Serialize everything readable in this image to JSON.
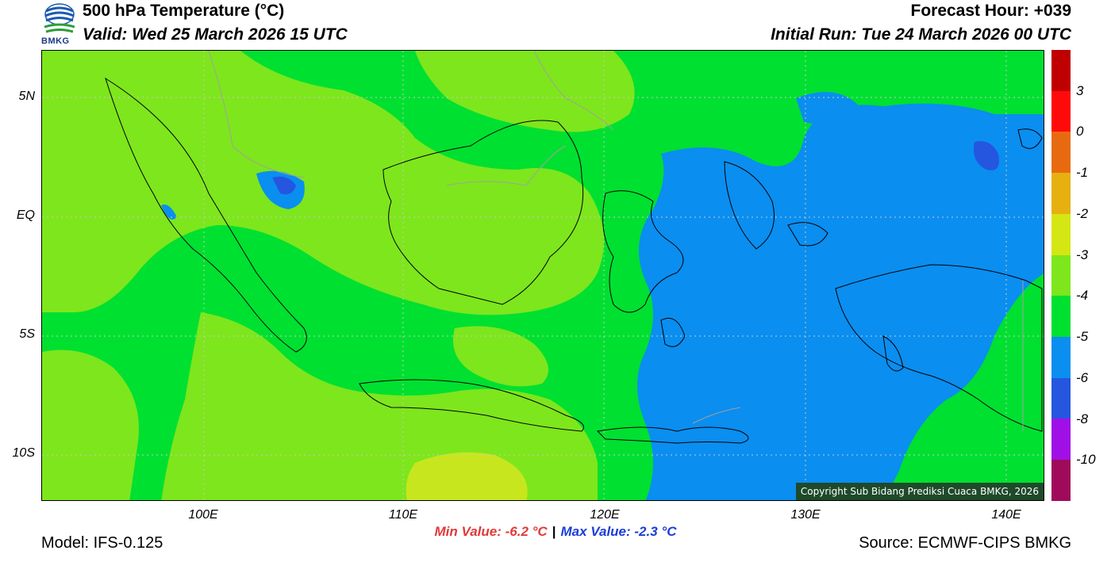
{
  "header": {
    "title": "500 hPa Temperature (°C)",
    "valid": "Valid: Wed 25 March 2026 15 UTC",
    "forecast_hour": "Forecast Hour: +039",
    "initial_run": "Initial Run: Tue 24 March 2026 00 UTC"
  },
  "logo": {
    "text": "BMKG",
    "colors": [
      "#1a5ab0",
      "#1a5ab0",
      "#2a9d3a"
    ]
  },
  "map": {
    "lat_labels": [
      "5N",
      "EQ",
      "5S",
      "10S"
    ],
    "lon_labels": [
      "100E",
      "110E",
      "120E",
      "130E",
      "140E"
    ],
    "copyright": "Copyright Sub Bidang Prediksi Cuaca BMKG, 2026",
    "field_colors": {
      "minus_3_to_minus_2": "#c8e61e",
      "minus_4_to_minus_3": "#7ee61c",
      "minus_5_to_minus_4": "#00e030",
      "minus_6_to_minus_5": "#0a8ef0",
      "minus_8_to_minus_6": "#2456e0",
      "coast": "#000000",
      "border": "#a0a0a0"
    }
  },
  "colorbar": {
    "labels": [
      "3",
      "0",
      "-1",
      "-2",
      "-3",
      "-4",
      "-5",
      "-6",
      "-8",
      "-10"
    ],
    "colors": [
      "#c00000",
      "#ff0a0a",
      "#e86a10",
      "#e6b010",
      "#d4e614",
      "#7ee61c",
      "#00e030",
      "#0a8ef0",
      "#2456e0",
      "#a010e6",
      "#a00a5a"
    ]
  },
  "stats": {
    "min": "Min Value: -6.2 °C",
    "separator": "|",
    "max": "Max Value: -2.3 °C"
  },
  "footer": {
    "model": "Model: IFS-0.125",
    "source": "Source: ECMWF-CIPS BMKG"
  }
}
